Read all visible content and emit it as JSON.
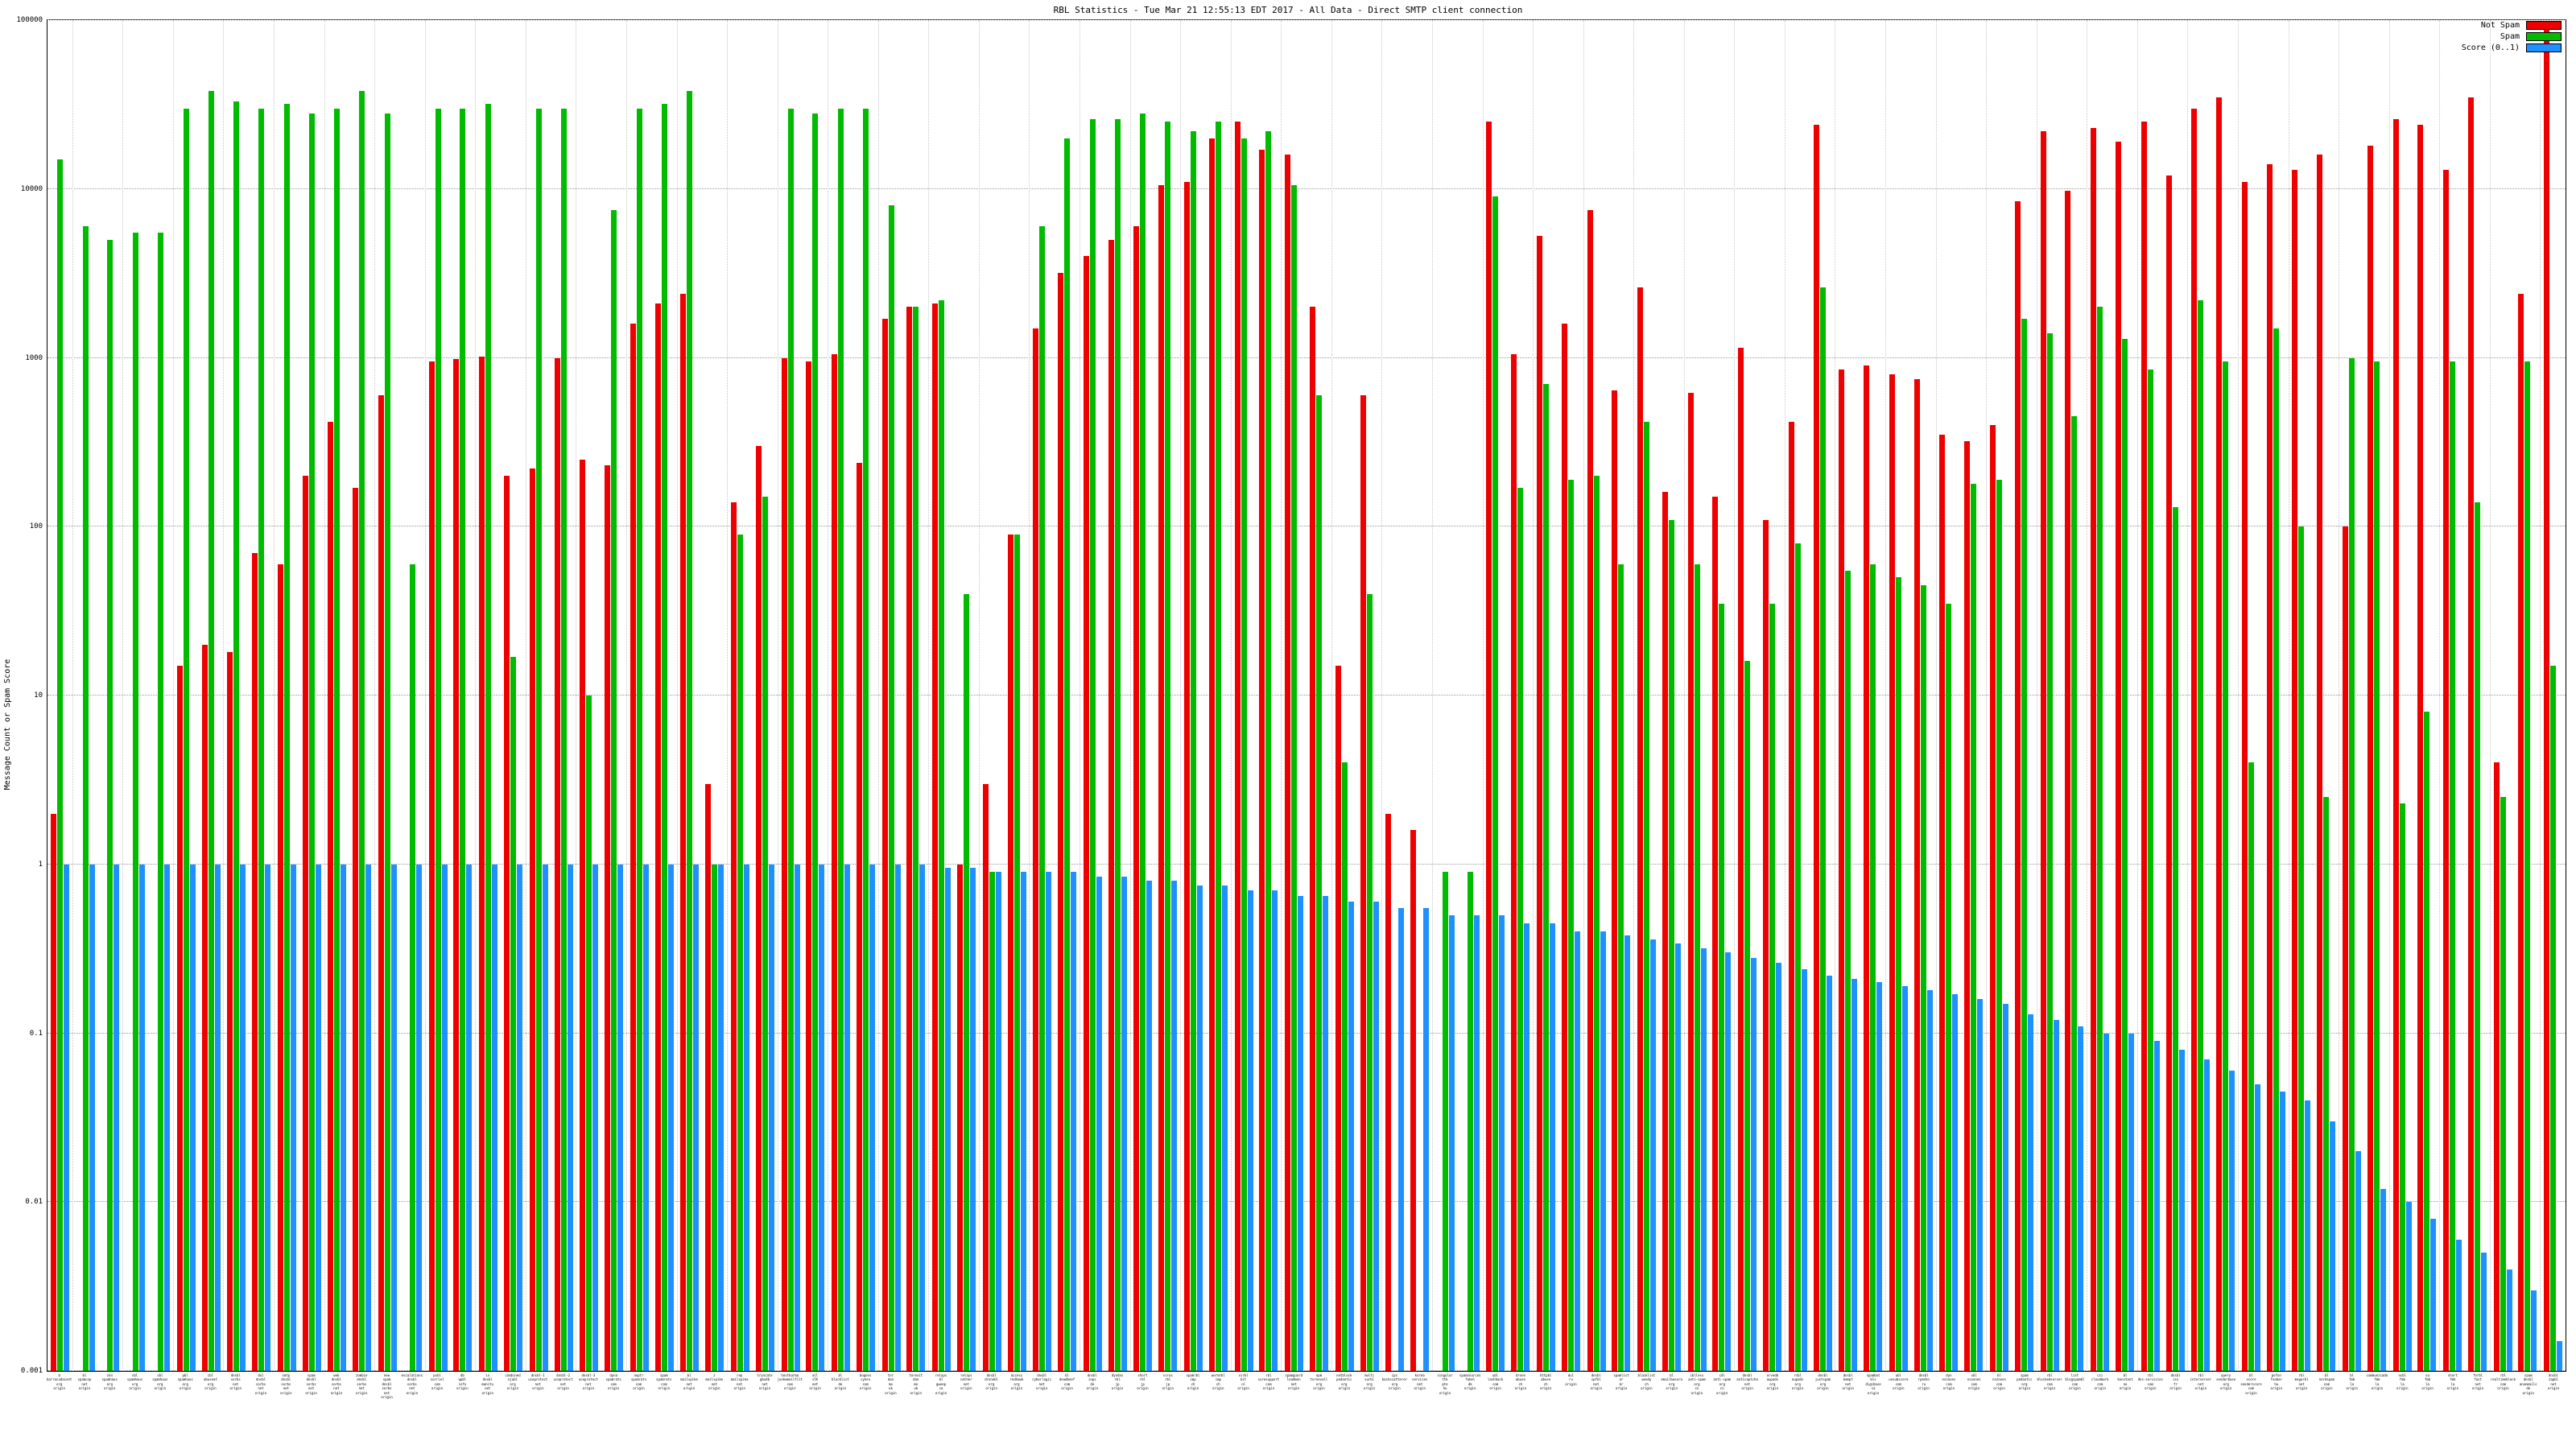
{
  "page": {
    "background": "#ffffff"
  },
  "chart_data": {
    "type": "bar",
    "title": "RBL Statistics - Tue Mar 21 12:55:13 EDT 2017 - All Data - Direct SMTP client connection",
    "ylabel": "Message Count or Spam Score",
    "yscale": "log",
    "ylim": [
      0.001,
      100000
    ],
    "grid": true,
    "legend_position": "top-right",
    "yticks": [
      {
        "value": 0.001,
        "label": "0.001"
      },
      {
        "value": 0.01,
        "label": "0.01"
      },
      {
        "value": 0.1,
        "label": "0.1"
      },
      {
        "value": 1,
        "label": "1"
      },
      {
        "value": 10,
        "label": "10"
      },
      {
        "value": 100,
        "label": "100"
      },
      {
        "value": 1000,
        "label": "1000"
      },
      {
        "value": 10000,
        "label": "10000"
      },
      {
        "value": 100000,
        "label": "100000"
      }
    ],
    "category_suffix": "origin",
    "categories": [
      "b.barracudacentral.org",
      "bl.spamcop.net",
      "zen.spamhaus.org",
      "sbl.spamhaus.org",
      "xbl.spamhaus.org",
      "pbl.spamhaus.org",
      "cbl.abuseat.org",
      "dnsbl.sorbs.net",
      "dul.dnsbl.sorbs.net",
      "smtp.dnsbl.sorbs.net",
      "spam.dnsbl.sorbs.net",
      "web.dnsbl.sorbs.net",
      "zombie.dnsbl.sorbs.net",
      "new.spam.dnsbl.sorbs.net",
      "escalations.dnsbl.sorbs.net",
      "psbl.surriel.com",
      "db.wpbl.info",
      "ix.dnsbl.manitu.net",
      "combined.njabl.org",
      "dnsbl-1.uceprotect.net",
      "dnsbl-2.uceprotect.net",
      "dnsbl-3.uceprotect.net",
      "dyna.spamrats.com",
      "noptr.spamrats.com",
      "spam.spamrats.com",
      "bl.mailspike.net",
      "z.mailspike.net",
      "rep.mailspike.net",
      "truncate.gbudb.net",
      "hostkarma.junkemailfilter.com",
      "all.s5h.net",
      "bl.blocklist.de",
      "bogons.cymru.com",
      "tor.dan.me.uk",
      "torexit.dan.me.uk",
      "relays.bl.gweep.ca",
      "relays.nether.net",
      "dnsbl.dronebl.org",
      "access.redhawk.org",
      "dnsbl.cyberlogic.net",
      "bl.deadbeef.com",
      "dnsbl.inps.de",
      "dyndns.rbl.jp",
      "short.rbl.jp",
      "virus.rbl.jp",
      "spamrbl.imp.ch",
      "wormrbl.imp.ch",
      "virbl.bit.nl",
      "rbl.suresupport.com",
      "spamguard.leadmon.net",
      "opm.tornevall.org",
      "netblock.pedantic.org",
      "multi.surbl.org",
      "ips.backscatterer.org",
      "korea.services.net",
      "singular.ttk.pte.hu",
      "spamsources.fabel.dk",
      "ubl.lashback.com",
      "drone.abuse.ch",
      "httpbl.abuse.ch",
      "dul.ru",
      "dnsbl.spfbl.net",
      "spamlist.or.kr",
      "blacklist.woody.ch",
      "bl.emailbasura.org",
      "cblless.anti-spam.org.cn",
      "cdl.anti-spam.org.cn",
      "dnsbl.anticaptcha.net",
      "orvedb.aupads.org",
      "rsbl.aupads.org",
      "dnsbl.justspam.org",
      "dnsbl.kempt.net",
      "spambot.bls.digibase.ca",
      "ubl.unsubscore.com",
      "dnsbl.rymsho.ru",
      "dyn.nszones.com",
      "sbl.nszones.com",
      "bl.nszones.com",
      "spam.pedantic.org",
      "rbl.blockedservers.com",
      "list.blogspambl.com",
      "csi.cloudmark.com",
      "bl.konstant.no",
      "rbl.dns-servicios.com",
      "dnsbl.isx.fr",
      "rbl.interserver.net",
      "query.senderbase.org",
      "bl.score.senderscore.com",
      "pofon.foobar.hu",
      "rbl.megarbl.net",
      "bl.nordspam.com",
      "bl.fmb.la",
      "communicado.fmb.la",
      "nsbl.fmb.la",
      "sa.fmb.la",
      "short.fmb.la",
      "fnrbl.fast.net",
      "rbl.realtimeblacklist.com",
      "spam.dnsbl.anonmails.de",
      "dnsbl.zapbl.net"
    ],
    "series": [
      {
        "name": "Not Spam",
        "color": "#ee0000",
        "values": [
          2,
          0,
          0,
          0,
          0,
          15,
          20,
          18,
          70,
          60,
          200,
          420,
          170,
          600,
          0,
          950,
          980,
          1020,
          200,
          220,
          1000,
          250,
          230,
          1600,
          2100,
          2400,
          3,
          140,
          300,
          1000,
          950,
          1050,
          240,
          1700,
          2000,
          2100,
          1,
          3,
          90,
          1500,
          3200,
          4000,
          5000,
          6000,
          10500,
          11000,
          20000,
          25000,
          17000,
          16000,
          2000,
          15,
          600,
          2,
          1.6,
          0,
          0,
          25000,
          1050,
          5300,
          1600,
          7500,
          640,
          2600,
          160,
          620,
          150,
          1150,
          110,
          420,
          24000,
          850,
          900,
          800,
          750,
          350,
          320,
          400,
          8500,
          22000,
          9800,
          23000,
          19000,
          25000,
          12000,
          30000,
          35000,
          11000,
          14000,
          13000,
          16000,
          100,
          18000,
          26000,
          24000,
          13000,
          35000,
          4,
          2400,
          90000
        ]
      },
      {
        "name": "Spam",
        "color": "#00bb00",
        "values": [
          15000,
          6000,
          5000,
          5500,
          5500,
          30000,
          38000,
          33000,
          30000,
          32000,
          28000,
          30000,
          38000,
          28000,
          60,
          30000,
          30000,
          32000,
          17,
          30000,
          30000,
          10,
          7500,
          30000,
          32000,
          38000,
          1,
          90,
          150,
          30000,
          28000,
          30000,
          30000,
          8000,
          2000,
          2200,
          40,
          0.9,
          90,
          6000,
          20000,
          26000,
          26000,
          28000,
          25000,
          22000,
          25000,
          20000,
          22000,
          10500,
          600,
          4,
          40,
          0,
          0,
          0.9,
          0.9,
          9000,
          170,
          700,
          190,
          200,
          60,
          420,
          110,
          60,
          35,
          16,
          35,
          80,
          2600,
          55,
          60,
          50,
          45,
          35,
          180,
          190,
          1700,
          1400,
          450,
          2000,
          1300,
          850,
          130,
          2200,
          950,
          4,
          1500,
          100,
          2.5,
          1000,
          950,
          2.3,
          8,
          950,
          140,
          2.5,
          950,
          15
        ]
      },
      {
        "name": "Score (0..1)",
        "color": "#1e90ff",
        "values": [
          1,
          1,
          1,
          1,
          1,
          1,
          1,
          1,
          1,
          1,
          1,
          1,
          1,
          1,
          1,
          1,
          1,
          1,
          1,
          1,
          1,
          1,
          1,
          1,
          1,
          1,
          1,
          1,
          1,
          1,
          1,
          1,
          1,
          1,
          1,
          0.95,
          0.95,
          0.9,
          0.9,
          0.9,
          0.9,
          0.85,
          0.85,
          0.8,
          0.8,
          0.75,
          0.75,
          0.7,
          0.7,
          0.65,
          0.65,
          0.6,
          0.6,
          0.55,
          0.55,
          0.5,
          0.5,
          0.5,
          0.45,
          0.45,
          0.4,
          0.4,
          0.38,
          0.36,
          0.34,
          0.32,
          0.3,
          0.28,
          0.26,
          0.24,
          0.22,
          0.21,
          0.2,
          0.19,
          0.18,
          0.17,
          0.16,
          0.15,
          0.13,
          0.12,
          0.11,
          0.1,
          0.1,
          0.09,
          0.08,
          0.07,
          0.06,
          0.05,
          0.045,
          0.04,
          0.03,
          0.02,
          0.012,
          0.01,
          0.008,
          0.006,
          0.005,
          0.004,
          0.003,
          0.0015
        ]
      }
    ]
  }
}
